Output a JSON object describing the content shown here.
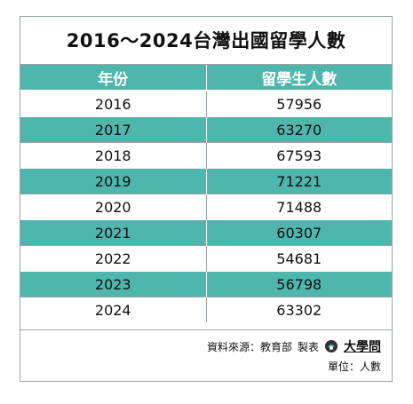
{
  "chart_data": {
    "type": "table",
    "title": "2016～2024台灣出國留學人數",
    "columns": [
      "年份",
      "留學生人數"
    ],
    "rows": [
      [
        "2016",
        "57956"
      ],
      [
        "2017",
        "63270"
      ],
      [
        "2018",
        "67593"
      ],
      [
        "2019",
        "71221"
      ],
      [
        "2020",
        "71488"
      ],
      [
        "2021",
        "60307"
      ],
      [
        "2022",
        "54681"
      ],
      [
        "2023",
        "56798"
      ],
      [
        "2024",
        "63302"
      ]
    ],
    "x": [
      2016,
      2017,
      2018,
      2019,
      2020,
      2021,
      2022,
      2023,
      2024
    ],
    "values": [
      57956,
      63270,
      67593,
      71221,
      71488,
      60307,
      54681,
      56798,
      63302
    ]
  },
  "footer": {
    "source": "資料來源：教育部",
    "made_by": "製表",
    "logo_text": "大學問",
    "unit": "單位：人數"
  },
  "colors": {
    "accent": "#4fb6ad",
    "border": "#9aa3a8"
  }
}
